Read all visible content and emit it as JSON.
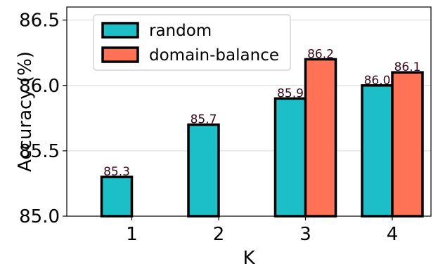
{
  "chart_data": {
    "type": "bar",
    "xlabel": "K",
    "ylabel": "Accuracy (%)",
    "categories": [
      "1",
      "2",
      "3",
      "4"
    ],
    "ylim": [
      85.0,
      86.6
    ],
    "yticks": [
      "85.0",
      "85.5",
      "86.0",
      "86.5"
    ],
    "grid": true,
    "legend_position": "top-left",
    "series": [
      {
        "name": "random",
        "color": "#1cbfc8",
        "values": [
          85.3,
          85.7,
          85.9,
          86.0
        ],
        "labels": [
          "85.3",
          "85.7",
          "85.9",
          "86.0"
        ]
      },
      {
        "name": "domain-balance",
        "color": "#ff7256",
        "values": [
          null,
          null,
          86.2,
          86.1
        ],
        "labels": [
          "",
          "",
          "86.2",
          "86.1"
        ]
      }
    ]
  }
}
